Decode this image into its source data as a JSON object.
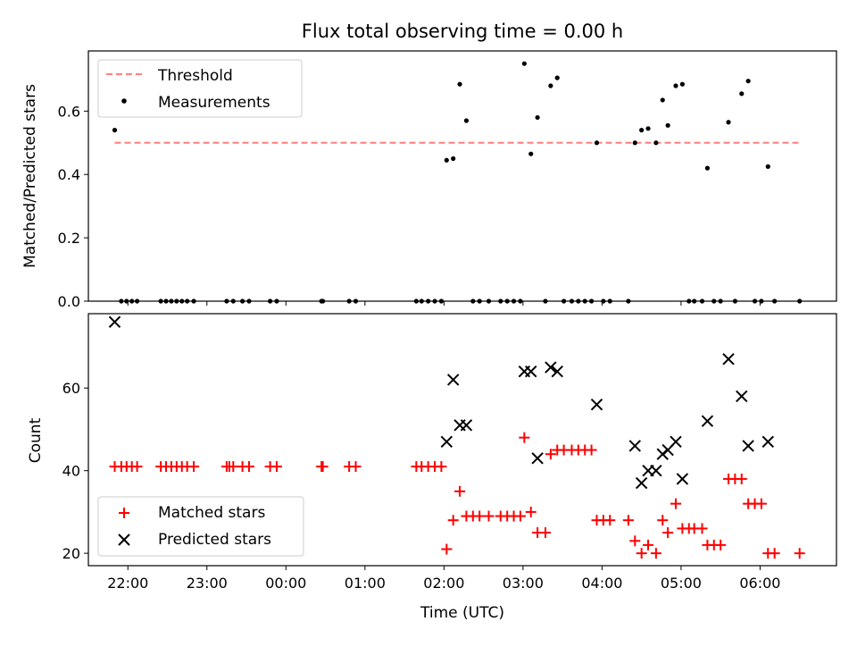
{
  "figure": {
    "title": "Flux total observing time = 0.00 h",
    "xlabel": "Time (UTC)",
    "xtick_labels": [
      "22:00",
      "23:00",
      "00:00",
      "01:00",
      "02:00",
      "03:00",
      "04:00",
      "05:00",
      "06:00"
    ]
  },
  "colors": {
    "threshold": "#ff7f7f",
    "matched": "#ff0000",
    "predicted": "#000000",
    "measurement": "#000000"
  },
  "chart_data": [
    {
      "type": "scatter",
      "ylabel": "Matched/Predicted stars",
      "xlim": [
        "21:30",
        "06:58"
      ],
      "ylim": [
        0,
        0.79
      ],
      "yticks": [
        0.0,
        0.2,
        0.4,
        0.6
      ],
      "ytick_labels": [
        "0.0",
        "0.2",
        "0.4",
        "0.6"
      ],
      "legend_position": "top-left",
      "threshold": {
        "name": "Threshold",
        "value": 0.5,
        "x_range": [
          "21:50",
          "06:30"
        ]
      },
      "series": [
        {
          "name": "Measurements",
          "points": [
            [
              "21:50",
              0.54
            ],
            [
              "21:55",
              0
            ],
            [
              "21:59",
              0
            ],
            [
              "22:03",
              0
            ],
            [
              "22:07",
              0
            ],
            [
              "22:25",
              0
            ],
            [
              "22:29",
              0
            ],
            [
              "22:33",
              0
            ],
            [
              "22:37",
              0
            ],
            [
              "22:41",
              0
            ],
            [
              "22:45",
              0
            ],
            [
              "22:50",
              0
            ],
            [
              "23:15",
              0
            ],
            [
              "23:20",
              0
            ],
            [
              "23:27",
              0
            ],
            [
              "23:32",
              0
            ],
            [
              "23:48",
              0
            ],
            [
              "23:53",
              0
            ],
            [
              "00:27",
              0
            ],
            [
              "00:28",
              0
            ],
            [
              "00:48",
              0
            ],
            [
              "00:53",
              0
            ],
            [
              "01:39",
              0
            ],
            [
              "01:43",
              0
            ],
            [
              "01:48",
              0
            ],
            [
              "01:53",
              0
            ],
            [
              "01:58",
              0
            ],
            [
              "02:02",
              0.445
            ],
            [
              "02:07",
              0.45
            ],
            [
              "02:12",
              0.685
            ],
            [
              "02:17",
              0.57
            ],
            [
              "02:22",
              0
            ],
            [
              "02:27",
              0
            ],
            [
              "02:34",
              0
            ],
            [
              "02:43",
              0
            ],
            [
              "02:48",
              0
            ],
            [
              "02:53",
              0
            ],
            [
              "02:58",
              0
            ],
            [
              "03:01",
              0.75
            ],
            [
              "03:06",
              0.465
            ],
            [
              "03:11",
              0.58
            ],
            [
              "03:17",
              0
            ],
            [
              "03:21",
              0.68
            ],
            [
              "03:26",
              0.705
            ],
            [
              "03:31",
              0
            ],
            [
              "03:37",
              0
            ],
            [
              "03:42",
              0
            ],
            [
              "03:47",
              0
            ],
            [
              "03:52",
              0
            ],
            [
              "03:56",
              0.5
            ],
            [
              "04:01",
              0
            ],
            [
              "04:06",
              0
            ],
            [
              "04:20",
              0
            ],
            [
              "04:25",
              0.5
            ],
            [
              "04:30",
              0.54
            ],
            [
              "04:35",
              0.545
            ],
            [
              "04:41",
              0.5
            ],
            [
              "04:46",
              0.635
            ],
            [
              "04:50",
              0.555
            ],
            [
              "04:56",
              0.68
            ],
            [
              "05:01",
              0.685
            ],
            [
              "05:06",
              0
            ],
            [
              "05:10",
              0
            ],
            [
              "05:16",
              0
            ],
            [
              "05:20",
              0.42
            ],
            [
              "05:25",
              0
            ],
            [
              "05:30",
              0
            ],
            [
              "05:36",
              0.565
            ],
            [
              "05:41",
              0
            ],
            [
              "05:46",
              0.655
            ],
            [
              "05:51",
              0.695
            ],
            [
              "05:56",
              0
            ],
            [
              "06:01",
              0
            ],
            [
              "06:06",
              0.425
            ],
            [
              "06:11",
              0
            ],
            [
              "06:30",
              0
            ]
          ]
        }
      ]
    },
    {
      "type": "scatter",
      "ylabel": "Count",
      "xlim": [
        "21:30",
        "06:58"
      ],
      "ylim": [
        17,
        78
      ],
      "yticks": [
        20,
        40,
        60
      ],
      "ytick_labels": [
        "20",
        "40",
        "60"
      ],
      "legend_position": "bottom-left",
      "series": [
        {
          "name": "Matched stars",
          "marker": "plus",
          "points": [
            [
              "21:50",
              41
            ],
            [
              "21:55",
              41
            ],
            [
              "21:59",
              41
            ],
            [
              "22:03",
              41
            ],
            [
              "22:07",
              41
            ],
            [
              "22:25",
              41
            ],
            [
              "22:29",
              41
            ],
            [
              "22:33",
              41
            ],
            [
              "22:37",
              41
            ],
            [
              "22:41",
              41
            ],
            [
              "22:45",
              41
            ],
            [
              "22:50",
              41
            ],
            [
              "23:15",
              41
            ],
            [
              "23:17",
              41
            ],
            [
              "23:20",
              41
            ],
            [
              "23:27",
              41
            ],
            [
              "23:32",
              41
            ],
            [
              "23:48",
              41
            ],
            [
              "23:53",
              41
            ],
            [
              "00:27",
              41
            ],
            [
              "00:28",
              41
            ],
            [
              "00:48",
              41
            ],
            [
              "00:53",
              41
            ],
            [
              "01:39",
              41
            ],
            [
              "01:43",
              41
            ],
            [
              "01:48",
              41
            ],
            [
              "01:53",
              41
            ],
            [
              "01:58",
              41
            ],
            [
              "02:02",
              21
            ],
            [
              "02:07",
              28
            ],
            [
              "02:12",
              35
            ],
            [
              "02:17",
              29
            ],
            [
              "02:22",
              29
            ],
            [
              "02:27",
              29
            ],
            [
              "02:34",
              29
            ],
            [
              "02:43",
              29
            ],
            [
              "02:48",
              29
            ],
            [
              "02:53",
              29
            ],
            [
              "02:58",
              29
            ],
            [
              "03:01",
              48
            ],
            [
              "03:06",
              30
            ],
            [
              "03:11",
              25
            ],
            [
              "03:17",
              25
            ],
            [
              "03:21",
              44
            ],
            [
              "03:26",
              45
            ],
            [
              "03:31",
              45
            ],
            [
              "03:37",
              45
            ],
            [
              "03:42",
              45
            ],
            [
              "03:47",
              45
            ],
            [
              "03:52",
              45
            ],
            [
              "03:56",
              28
            ],
            [
              "04:01",
              28
            ],
            [
              "04:06",
              28
            ],
            [
              "04:20",
              28
            ],
            [
              "04:25",
              23
            ],
            [
              "04:30",
              20
            ],
            [
              "04:35",
              22
            ],
            [
              "04:41",
              20
            ],
            [
              "04:46",
              28
            ],
            [
              "04:50",
              25
            ],
            [
              "04:56",
              32
            ],
            [
              "05:01",
              26
            ],
            [
              "05:06",
              26
            ],
            [
              "05:10",
              26
            ],
            [
              "05:16",
              26
            ],
            [
              "05:20",
              22
            ],
            [
              "05:25",
              22
            ],
            [
              "05:30",
              22
            ],
            [
              "05:36",
              38
            ],
            [
              "05:41",
              38
            ],
            [
              "05:46",
              38
            ],
            [
              "05:51",
              32
            ],
            [
              "05:56",
              32
            ],
            [
              "06:01",
              32
            ],
            [
              "06:06",
              20
            ],
            [
              "06:11",
              20
            ],
            [
              "06:30",
              20
            ]
          ]
        },
        {
          "name": "Predicted stars",
          "marker": "x",
          "points": [
            [
              "21:50",
              76
            ],
            [
              "02:02",
              47
            ],
            [
              "02:07",
              62
            ],
            [
              "02:12",
              51
            ],
            [
              "02:17",
              51
            ],
            [
              "03:01",
              64
            ],
            [
              "03:06",
              64
            ],
            [
              "03:11",
              43
            ],
            [
              "03:21",
              65
            ],
            [
              "03:26",
              64
            ],
            [
              "03:56",
              56
            ],
            [
              "04:25",
              46
            ],
            [
              "04:30",
              37
            ],
            [
              "04:35",
              40
            ],
            [
              "04:41",
              40
            ],
            [
              "04:46",
              44
            ],
            [
              "04:50",
              45
            ],
            [
              "04:56",
              47
            ],
            [
              "05:01",
              38
            ],
            [
              "05:20",
              52
            ],
            [
              "05:36",
              67
            ],
            [
              "05:46",
              58
            ],
            [
              "05:51",
              46
            ],
            [
              "06:06",
              47
            ]
          ]
        }
      ]
    }
  ]
}
